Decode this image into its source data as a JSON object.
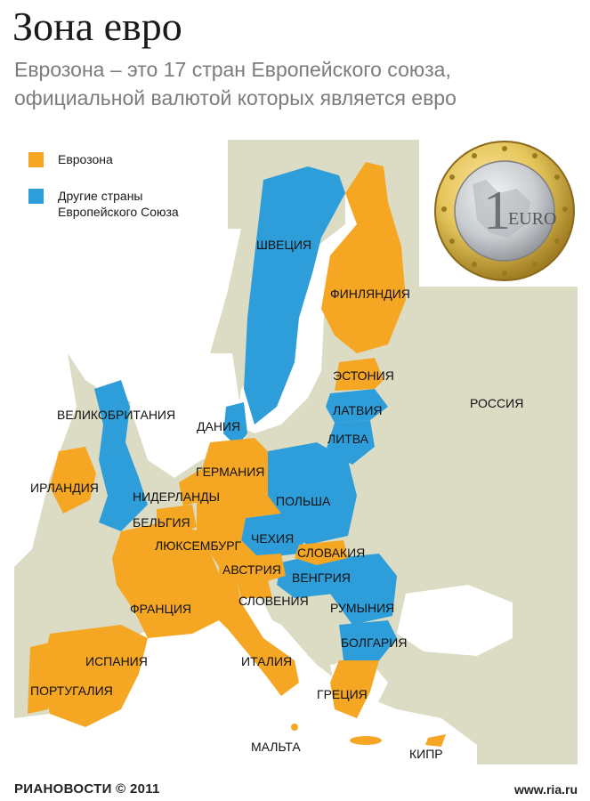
{
  "header": {
    "title": "Зона евро",
    "subtitle": "Еврозона – это 17 стран Европейского союза, официальной валютой которых является евро"
  },
  "legend": {
    "items": [
      {
        "label": "Еврозона",
        "color": "#f5a623"
      },
      {
        "label": "Другие страны Европейского Союза",
        "color": "#2e9edb"
      }
    ]
  },
  "map": {
    "land_color": "#dcdcc4",
    "sea_color": "#ffffff",
    "eurozone_color": "#f5a623",
    "other_eu_color": "#2e9edb",
    "country_labels": {
      "sweden": "ШВЕЦИЯ",
      "finland": "ФИНЛЯНДИЯ",
      "estonia": "ЭСТОНИЯ",
      "latvia": "ЛАТВИЯ",
      "lithuania": "ЛИТВА",
      "russia": "РОССИЯ",
      "uk": "ВЕЛИКОБРИТАНИЯ",
      "denmark": "ДАНИЯ",
      "ireland": "ИРЛАНДИЯ",
      "germany": "ГЕРМАНИЯ",
      "netherlands": "НИДЕРЛАНДЫ",
      "poland": "ПОЛЬША",
      "belgium": "БЕЛЬГИЯ",
      "luxembourg": "ЛЮКСЕМБУРГ",
      "czechia": "ЧЕХИЯ",
      "slovakia": "СЛОВАКИЯ",
      "austria": "АВСТРИЯ",
      "hungary": "ВЕНГРИЯ",
      "slovenia": "СЛОВЕНИЯ",
      "romania": "РУМЫНИЯ",
      "france": "ФРАНЦИЯ",
      "bulgaria": "БОЛГАРИЯ",
      "spain": "ИСПАНИЯ",
      "italy": "ИТАЛИЯ",
      "portugal": "ПОРТУГАЛИЯ",
      "greece": "ГРЕЦИЯ",
      "malta": "МАЛЬТА",
      "cyprus": "КИПР"
    }
  },
  "coin": {
    "value": "1",
    "text": "EURO",
    "ring_color": "#e6c65c",
    "center_color": "#c9ccd0"
  },
  "footer": {
    "brand": "РИАНОВОСТИ",
    "copyright": "© 2011",
    "url": "www.ria.ru"
  }
}
